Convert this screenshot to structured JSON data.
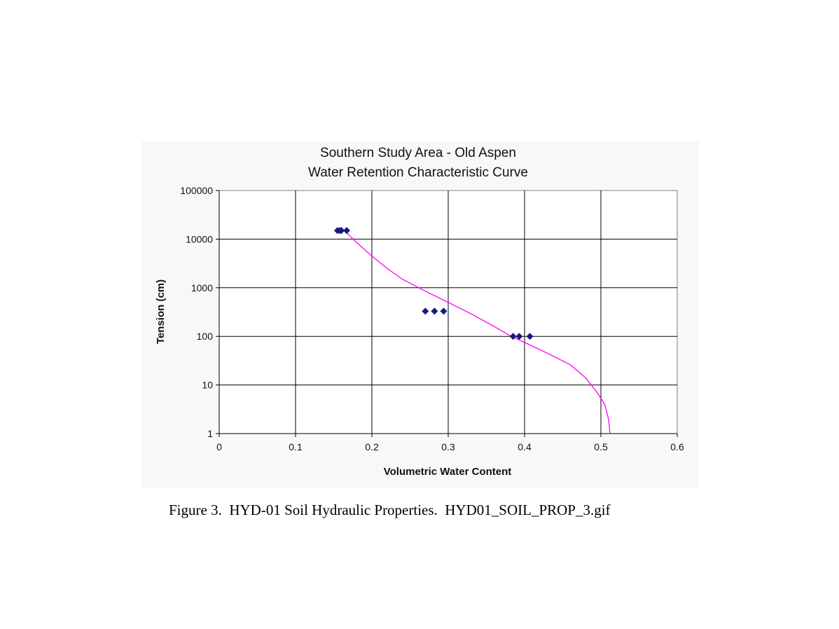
{
  "chart_data": {
    "type": "scatter",
    "title": [
      "Southern Study Area - Old Aspen",
      "Water Retention Characteristic Curve"
    ],
    "xlabel": "Volumetric Water Content",
    "ylabel": "Tension (cm)",
    "xlim": [
      0,
      0.6
    ],
    "ylim": [
      1,
      100000
    ],
    "yscale": "log",
    "x_ticks": [
      "0",
      "0.1",
      "0.2",
      "0.3",
      "0.4",
      "0.5",
      "0.6"
    ],
    "y_ticks": [
      "1",
      "10",
      "100",
      "1000",
      "10000",
      "100000"
    ],
    "grid": true,
    "legend": "none",
    "series": [
      {
        "kind": "points",
        "color": "#1a1a7a",
        "marker": "diamond",
        "points": [
          {
            "x": 0.155,
            "y": 15000
          },
          {
            "x": 0.158,
            "y": 15000
          },
          {
            "x": 0.16,
            "y": 15000
          },
          {
            "x": 0.167,
            "y": 15000
          },
          {
            "x": 0.27,
            "y": 330
          },
          {
            "x": 0.282,
            "y": 330
          },
          {
            "x": 0.294,
            "y": 330
          },
          {
            "x": 0.385,
            "y": 100
          },
          {
            "x": 0.393,
            "y": 100
          },
          {
            "x": 0.407,
            "y": 100
          }
        ]
      },
      {
        "kind": "curve",
        "color": "#ff00ff",
        "points": [
          {
            "x": 0.164,
            "y": 15000
          },
          {
            "x": 0.18,
            "y": 8500
          },
          {
            "x": 0.2,
            "y": 4500
          },
          {
            "x": 0.22,
            "y": 2500
          },
          {
            "x": 0.24,
            "y": 1500
          },
          {
            "x": 0.27,
            "y": 850
          },
          {
            "x": 0.3,
            "y": 500
          },
          {
            "x": 0.33,
            "y": 290
          },
          {
            "x": 0.36,
            "y": 160
          },
          {
            "x": 0.38,
            "y": 105
          },
          {
            "x": 0.4,
            "y": 75
          },
          {
            "x": 0.43,
            "y": 45
          },
          {
            "x": 0.46,
            "y": 26
          },
          {
            "x": 0.48,
            "y": 14
          },
          {
            "x": 0.495,
            "y": 7
          },
          {
            "x": 0.505,
            "y": 4
          },
          {
            "x": 0.51,
            "y": 2
          },
          {
            "x": 0.512,
            "y": 1
          }
        ]
      }
    ]
  },
  "caption": "Figure 3.  HYD-01 Soil Hydraulic Properties.  HYD01_SOIL_PROP_3.gif"
}
